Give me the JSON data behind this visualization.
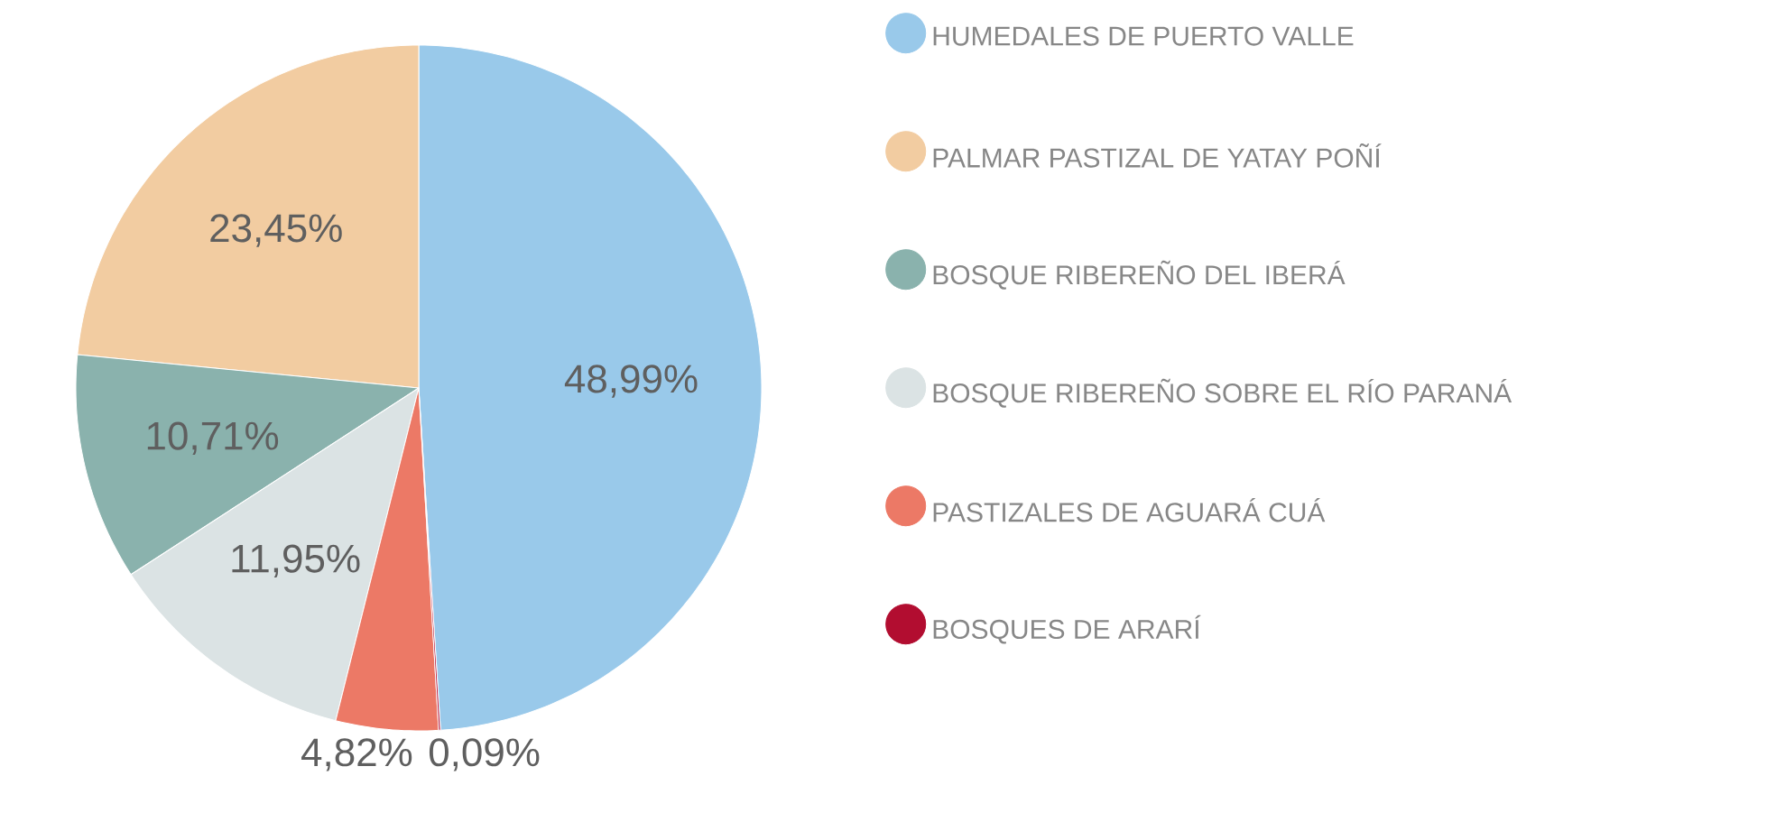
{
  "chart_data": {
    "type": "pie",
    "categories": [
      "HUMEDALES DE PUERTO VALLE",
      "PALMAR PASTIZAL DE YATAY POÑÍ",
      "BOSQUE RIBEREÑO DEL IBERÁ",
      "BOSQUE RIBEREÑO SOBRE EL RÍO PARANÁ",
      "PASTIZALES DE AGUARÁ CUÁ",
      "BOSQUES DE ARARÍ"
    ],
    "values": [
      48.99,
      23.45,
      10.71,
      11.95,
      4.82,
      0.09
    ],
    "value_labels": [
      "48,99%",
      "23,45%",
      "10,71%",
      "11,95%",
      "4,82%",
      "0,09%"
    ],
    "colors": [
      "#99c9ea",
      "#f2cca1",
      "#8ab2ad",
      "#dbe3e4",
      "#ec7966",
      "#b20d30"
    ],
    "legend": "right"
  }
}
